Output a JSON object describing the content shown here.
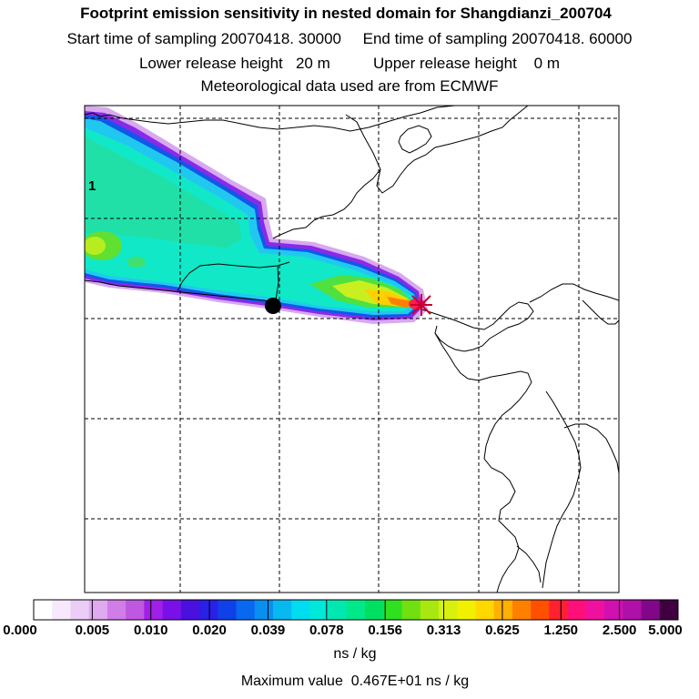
{
  "header": {
    "title": "Footprint emission sensitivity in nested domain for Shangdianzi_200704",
    "sampling": "Start time of sampling 20070418. 30000     End time of sampling 20070418. 60000",
    "heights": "Lower release height   20 m          Upper release height    0 m",
    "meteo": "Meteorological data used are from ECMWF"
  },
  "map": {
    "release_label": "1",
    "receptor_marker": "star-icon",
    "source_marker": "dot-icon"
  },
  "colorbar": {
    "colors": [
      "#ffffff",
      "#f7e8fb",
      "#eccdf6",
      "#e0aaf0",
      "#d07de8",
      "#bf58e0",
      "#a020e8",
      "#7a10e8",
      "#4a10e0",
      "#2a20e8",
      "#1040e8",
      "#0868f0",
      "#0890f0",
      "#08b8f0",
      "#00dcf0",
      "#00e8d8",
      "#00e8b0",
      "#00e888",
      "#00e060",
      "#30e020",
      "#70e010",
      "#a8e810",
      "#d8f010",
      "#f0f000",
      "#ffd800",
      "#ffb000",
      "#ff8000",
      "#ff5000",
      "#ff2030",
      "#ff1078",
      "#f010a0",
      "#d010b0",
      "#b010a8",
      "#800888",
      "#400040"
    ],
    "tick_labels": [
      "0.000",
      "0.005",
      "0.010",
      "0.020",
      "0.039",
      "0.078",
      "0.156",
      "0.313",
      "0.625",
      "1.250",
      "2.500",
      "5.000"
    ],
    "units": "ns / kg",
    "max_value_text": "Maximum value  0.467E+01 ns / kg",
    "max_value": 4.67
  }
}
